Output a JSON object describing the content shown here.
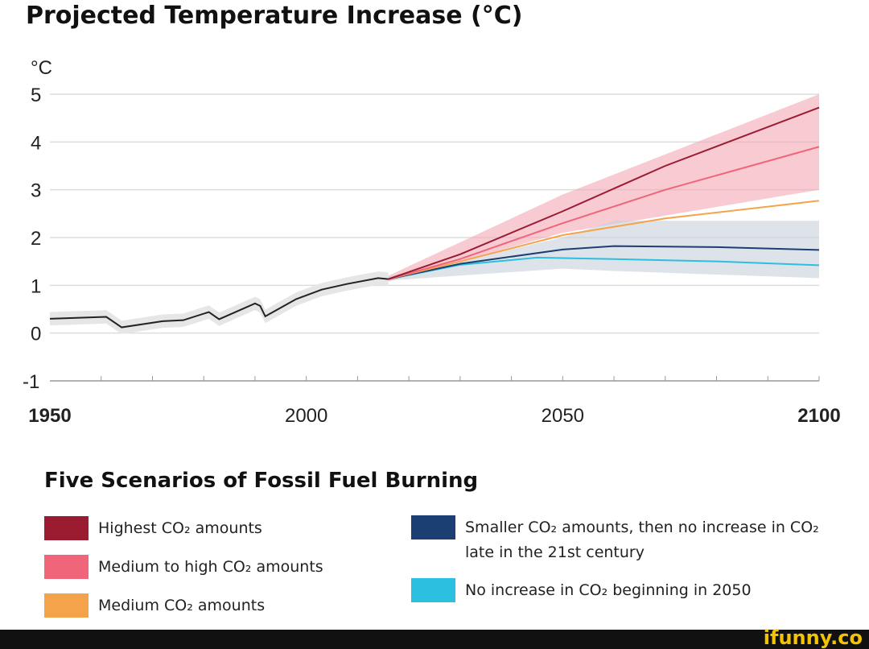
{
  "chart_data": {
    "type": "line",
    "title": "Projected Temperature Increase (°C)",
    "ylabel": "°C",
    "xlabel": "",
    "xlim": [
      1950,
      2100
    ],
    "ylim": [
      -1,
      5
    ],
    "x_ticks": [
      1950,
      2000,
      2050,
      2100
    ],
    "y_ticks": [
      -1,
      0,
      1,
      2,
      3,
      4,
      5
    ],
    "grid": true,
    "legend_title": "Five Scenarios of Fossil Fuel Burning",
    "legend_placement": "bottom",
    "historical": {
      "color": "#222222",
      "x": [
        1950,
        1961,
        1964,
        1972,
        1976,
        1981,
        1983,
        1990,
        1991,
        1992,
        1998,
        2003,
        2008,
        2014,
        2016
      ],
      "y": [
        0.3,
        0.34,
        0.12,
        0.25,
        0.27,
        0.44,
        0.29,
        0.62,
        0.57,
        0.35,
        0.71,
        0.91,
        1.03,
        1.15,
        1.13
      ]
    },
    "series": [
      {
        "name": "Highest CO₂ amounts",
        "color": "#9b1b30",
        "x": [
          2016,
          2030,
          2050,
          2070,
          2100
        ],
        "y": [
          1.13,
          1.65,
          2.55,
          3.5,
          4.72
        ]
      },
      {
        "name": "Medium to high CO₂ amounts",
        "color": "#f0657a",
        "x": [
          2016,
          2030,
          2050,
          2070,
          2100
        ],
        "y": [
          1.13,
          1.55,
          2.3,
          3.0,
          3.9
        ]
      },
      {
        "name": "Medium CO₂ amounts",
        "color": "#f5a34a",
        "x": [
          2016,
          2030,
          2050,
          2070,
          2100
        ],
        "y": [
          1.13,
          1.5,
          2.05,
          2.4,
          2.77
        ]
      },
      {
        "name": "Smaller CO₂ amounts, then no increase in CO₂ late in the 21st century",
        "color": "#1b3f73",
        "x": [
          2016,
          2030,
          2050,
          2060,
          2080,
          2100
        ],
        "y": [
          1.13,
          1.45,
          1.75,
          1.82,
          1.8,
          1.74
        ]
      },
      {
        "name": "No increase in CO₂ beginning in 2050",
        "color": "#2bbfe0",
        "x": [
          2016,
          2030,
          2045,
          2060,
          2080,
          2100
        ],
        "y": [
          1.13,
          1.43,
          1.58,
          1.55,
          1.5,
          1.42
        ]
      }
    ],
    "bands": [
      {
        "color": "#f4a6b4",
        "x": [
          2016,
          2050,
          2100
        ],
        "upper": [
          1.2,
          2.9,
          5.0
        ],
        "lower": [
          1.08,
          2.1,
          3.0
        ]
      },
      {
        "color": "#c8d0dc",
        "x": [
          2016,
          2050,
          2060,
          2100
        ],
        "upper": [
          1.18,
          2.0,
          2.35,
          2.35
        ],
        "lower": [
          1.1,
          1.35,
          1.3,
          1.15
        ]
      }
    ]
  },
  "watermark": "ifunny.co"
}
